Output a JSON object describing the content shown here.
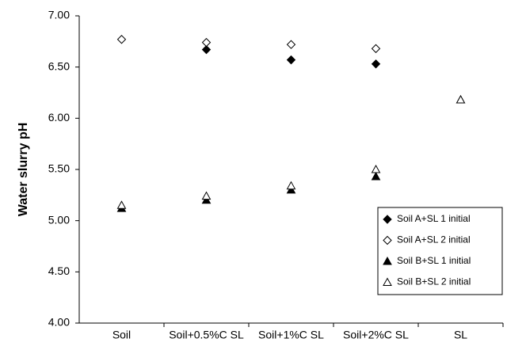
{
  "chart_data": {
    "type": "scatter",
    "y_label": "Water slurry pH",
    "categories": [
      "Soil",
      "Soil+0.5%C SL",
      "Soil+1%C SL",
      "Soil+2%C SL",
      "SL"
    ],
    "series": [
      {
        "name": "Soil A+SL 1 initial",
        "color": "#000000",
        "marker": "diamond",
        "filled": true,
        "values": [
          null,
          6.67,
          6.57,
          6.53,
          null
        ]
      },
      {
        "name": "Soil A+SL 2 initial",
        "color": "#000000",
        "marker": "diamond",
        "filled": false,
        "values": [
          6.77,
          6.74,
          6.72,
          6.68,
          null
        ]
      },
      {
        "name": "Soil B+SL 1 initial",
        "color": "#000000",
        "marker": "triangle",
        "filled": true,
        "values": [
          5.12,
          5.2,
          5.3,
          5.43,
          6.18
        ]
      },
      {
        "name": "Soil B+SL 2 initial",
        "color": "#000000",
        "marker": "triangle",
        "filled": false,
        "values": [
          5.15,
          5.24,
          5.34,
          5.5,
          6.18
        ]
      }
    ],
    "ylim": [
      4,
      7
    ],
    "yticks": [
      {
        "value": 4,
        "label": "4.00"
      },
      {
        "value": 4.5,
        "label": "4.50"
      },
      {
        "value": 5,
        "label": "5.00"
      },
      {
        "value": 5.5,
        "label": "5.50"
      },
      {
        "value": 6,
        "label": "6.00"
      },
      {
        "value": 6.5,
        "label": "6.50"
      },
      {
        "value": 7,
        "label": "7.00"
      }
    ],
    "legend": "lower-right"
  }
}
